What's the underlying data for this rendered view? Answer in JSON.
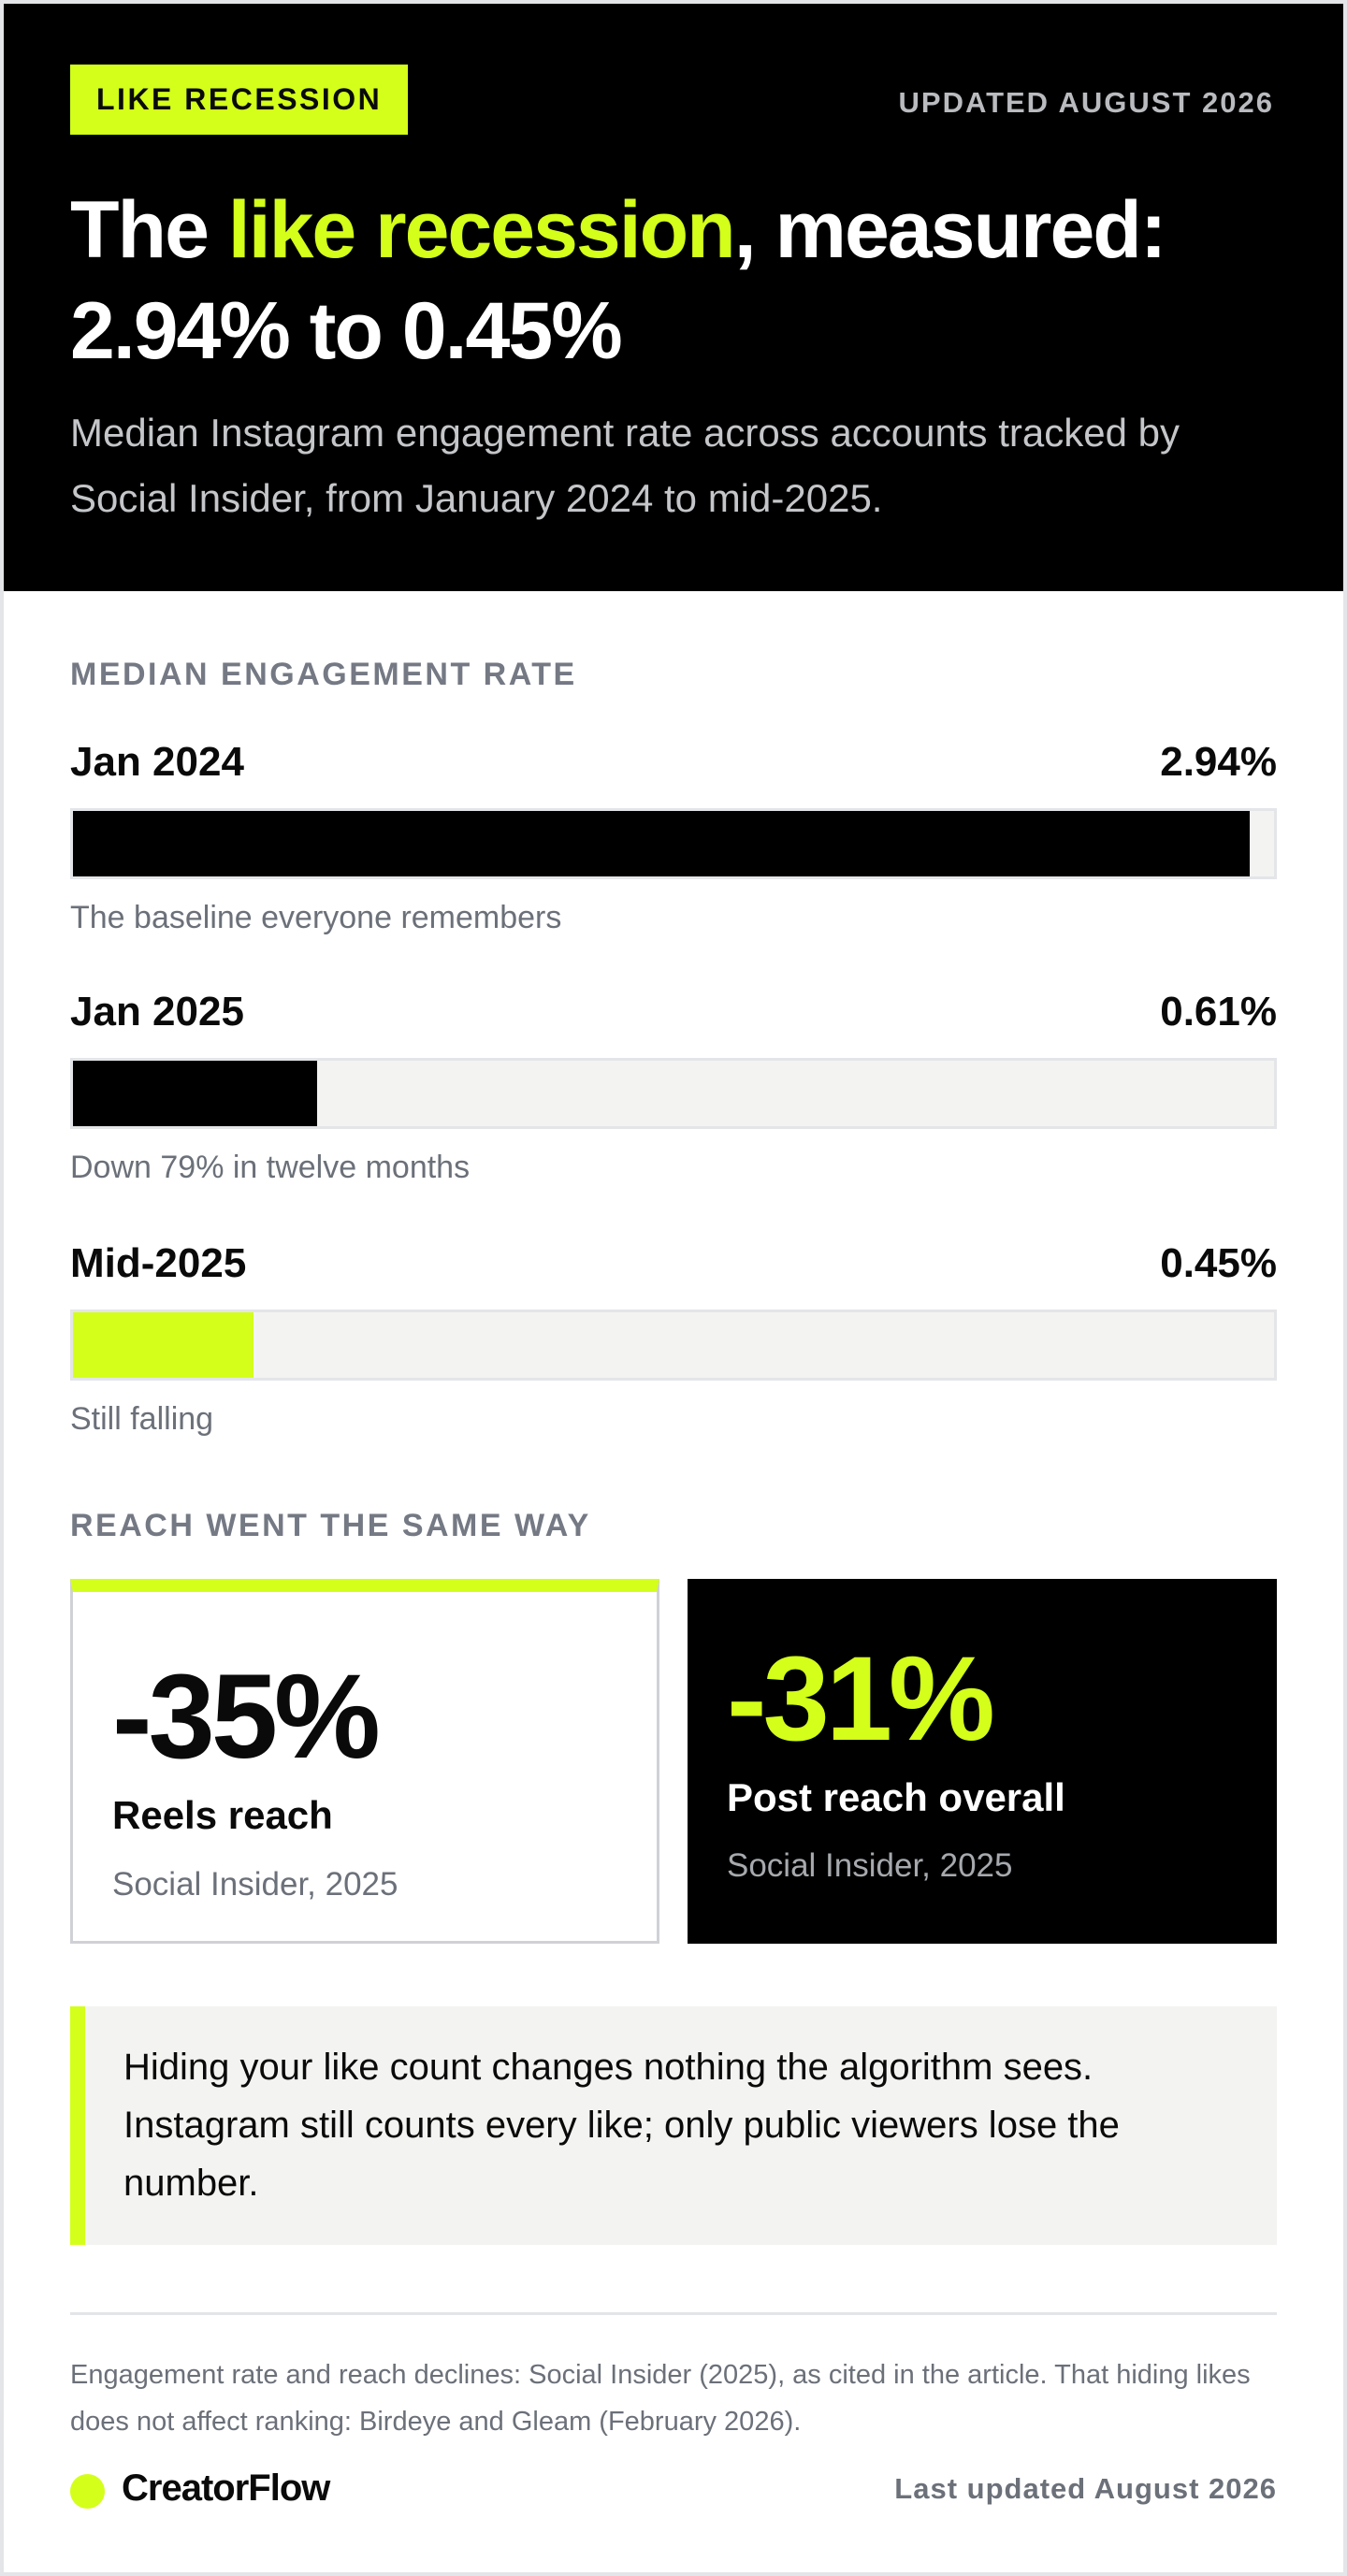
{
  "header": {
    "tag": "LIKE RECESSION",
    "updated": "UPDATED AUGUST 2026",
    "headline_pre": "The ",
    "headline_accent": "like recession",
    "headline_post": ", measured:",
    "headline_line2": "2.94% to 0.45%",
    "subhead": "Median Instagram engagement rate across accounts tracked by Social Insider, from January 2024 to mid-2025."
  },
  "colors": {
    "accent": "#d4ff1a",
    "dark": "#000000",
    "track": "#f3f4f1",
    "muted": "#6b7079"
  },
  "chart_data": {
    "type": "bar",
    "orientation": "horizontal",
    "title": "MEDIAN ENGAGEMENT RATE",
    "categories": [
      "Jan 2024",
      "Jan 2025",
      "Mid-2025"
    ],
    "values": [
      2.94,
      0.61,
      0.45
    ],
    "value_labels": [
      "2.94%",
      "0.61%",
      "0.45%"
    ],
    "notes": [
      "The baseline everyone remembers",
      "Down 79% in twelve months",
      "Still falling"
    ],
    "bar_colors": [
      "#000000",
      "#000000",
      "#d4ff1a"
    ],
    "xlim": [
      0,
      3
    ]
  },
  "reach": {
    "label": "REACH WENT THE SAME WAY",
    "cards": [
      {
        "value": "-35%",
        "title": "Reels reach",
        "source": "Social Insider, 2025"
      },
      {
        "value": "-31%",
        "title": "Post reach overall",
        "source": "Social Insider, 2025"
      }
    ]
  },
  "callout": {
    "text": "Hiding your like count changes nothing the algorithm sees. Instagram still counts every like; only public viewers lose the number."
  },
  "footer": {
    "source": "Engagement rate and reach declines: Social Insider (2025), as cited in the article. That hiding likes does not affect ranking: Birdeye and Gleam (February 2026).",
    "brand": "CreatorFlow",
    "last_updated": "Last updated August 2026"
  }
}
